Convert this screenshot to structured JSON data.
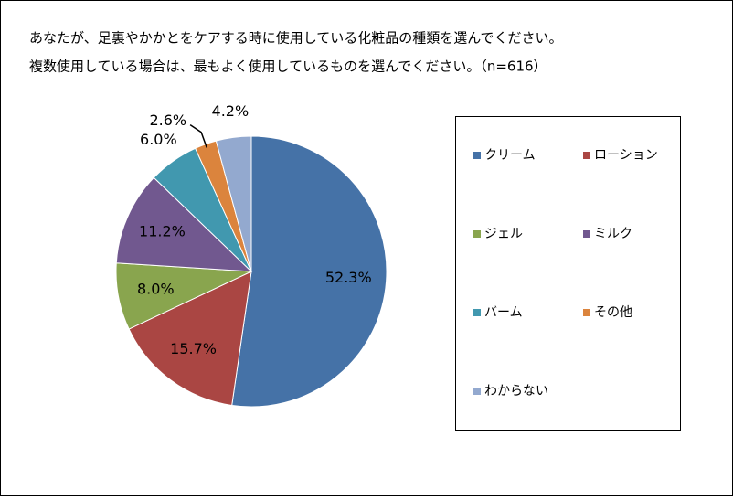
{
  "chart_data": {
    "type": "pie",
    "title": "あなたが、足裏やかかとをケアする時に使用している化粧品の種類を選んでください。",
    "subtitle": "複数使用している場合は、最もよく使用しているものを選んでください。（n=616）",
    "categories": [
      "クリーム",
      "ローション",
      "ジェル",
      "ミルク",
      "バーム",
      "その他",
      "わからない"
    ],
    "values": [
      52.3,
      15.7,
      8.0,
      11.2,
      6.0,
      2.6,
      4.2
    ],
    "value_labels": [
      "52.3%",
      "15.7%",
      "8.0%",
      "11.2%",
      "6.0%",
      "2.6%",
      "4.2%"
    ],
    "colors": [
      "#4572a7",
      "#aa4643",
      "#89a54e",
      "#71588f",
      "#4198af",
      "#db843d",
      "#93a9cf"
    ],
    "legend": "right"
  }
}
